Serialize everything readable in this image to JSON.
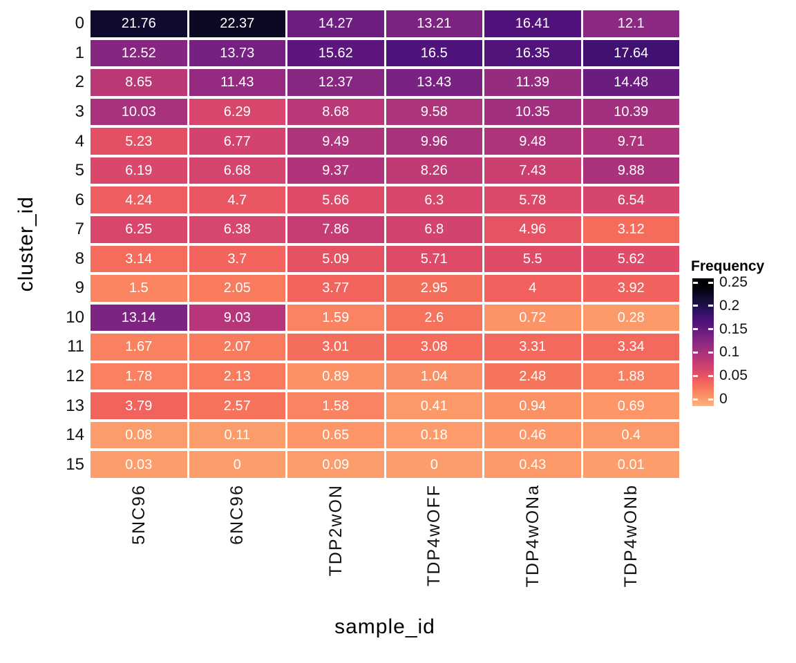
{
  "chart_data": {
    "type": "heatmap",
    "title": "",
    "xlabel": "sample_id",
    "ylabel": "cluster_id",
    "x_categories": [
      "5NC96",
      "6NC96",
      "TDP2wON",
      "TDP4wOFF",
      "TDP4wONa",
      "TDP4wONb"
    ],
    "y_categories": [
      "0",
      "1",
      "2",
      "3",
      "4",
      "5",
      "6",
      "7",
      "8",
      "9",
      "10",
      "11",
      "12",
      "13",
      "14",
      "15"
    ],
    "values_percent": [
      [
        21.76,
        22.37,
        14.27,
        13.21,
        16.41,
        12.1
      ],
      [
        12.52,
        13.73,
        15.62,
        16.5,
        16.35,
        17.64
      ],
      [
        8.65,
        11.43,
        12.37,
        13.43,
        11.39,
        14.48
      ],
      [
        10.03,
        6.29,
        8.68,
        9.58,
        10.35,
        10.39
      ],
      [
        5.23,
        6.77,
        9.49,
        9.96,
        9.48,
        9.71
      ],
      [
        6.19,
        6.68,
        9.37,
        8.26,
        7.43,
        9.88
      ],
      [
        4.24,
        4.7,
        5.66,
        6.3,
        5.78,
        6.54
      ],
      [
        6.25,
        6.38,
        7.86,
        6.8,
        4.96,
        3.12
      ],
      [
        3.14,
        3.7,
        5.09,
        5.71,
        5.5,
        5.62
      ],
      [
        1.5,
        2.05,
        3.77,
        2.95,
        4,
        3.92
      ],
      [
        13.14,
        9.03,
        1.59,
        2.6,
        0.72,
        0.28
      ],
      [
        1.67,
        2.07,
        3.01,
        3.08,
        3.31,
        3.34
      ],
      [
        1.78,
        2.13,
        0.89,
        1.04,
        2.48,
        1.88
      ],
      [
        3.79,
        2.57,
        1.58,
        0.41,
        0.94,
        0.69
      ],
      [
        0.08,
        0.11,
        0.65,
        0.18,
        0.46,
        0.4
      ],
      [
        0.03,
        0,
        0.09,
        0,
        0.43,
        0.01
      ]
    ],
    "legend": {
      "title": "Frequency",
      "tick_labels": [
        "0.25",
        "0.2",
        "0.15",
        "0.1",
        "0.05",
        "0"
      ],
      "domain": [
        0,
        0.25
      ],
      "position": "right",
      "direction": "high-dark-low-light"
    },
    "grid": false,
    "cell_border_color": "#ffffff"
  },
  "colors": {
    "background": "#ffffff",
    "cell_text": "#ffffff",
    "axis_text": "#111111",
    "axis_title": "#000000",
    "palette_name": "magma-reversed",
    "magma_anchors": [
      [
        0.0,
        "#000004"
      ],
      [
        0.05,
        "#0C0926"
      ],
      [
        0.1,
        "#180F3E"
      ],
      [
        0.15,
        "#2D1160"
      ],
      [
        0.2,
        "#451077"
      ],
      [
        0.25,
        "#5B167E"
      ],
      [
        0.3,
        "#721F81"
      ],
      [
        0.35,
        "#882781"
      ],
      [
        0.4,
        "#9F2F7F"
      ],
      [
        0.45,
        "#B63679"
      ],
      [
        0.5,
        "#CD4071"
      ],
      [
        0.55,
        "#DE4A68"
      ],
      [
        0.6,
        "#F1605D"
      ],
      [
        0.65,
        "#F8765C"
      ],
      [
        0.7,
        "#FD9567"
      ],
      [
        0.75,
        "#FEA972"
      ],
      [
        0.8,
        "#FEC98D"
      ]
    ]
  }
}
